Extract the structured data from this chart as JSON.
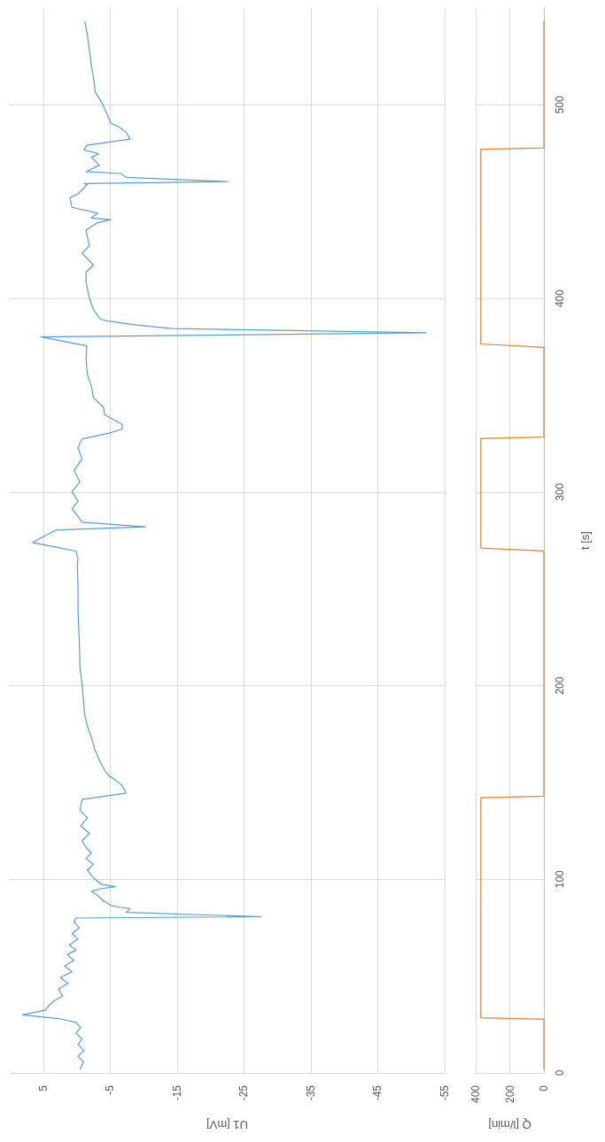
{
  "chart_data": [
    {
      "type": "line",
      "xlabel": "U1 [mV]",
      "xlim": [
        10,
        -55
      ],
      "xticks": [
        5,
        -5,
        -15,
        -25,
        -35,
        -45,
        -55
      ],
      "ylim": [
        0,
        550
      ],
      "yticks": [
        0,
        100,
        200,
        300,
        400,
        500
      ],
      "grid": true,
      "tick_labels": "x",
      "marker": "none",
      "series": [
        {
          "color": "#5b9bd5",
          "x": [
            -0.5,
            -1.0,
            -0.2,
            -1.1,
            -0.2,
            -0.8,
            0.1,
            -0.6,
            0.1,
            2.7,
            8.1,
            4.7,
            4.1,
            3.3,
            2.1,
            2.7,
            1.3,
            2.4,
            0.7,
            1.8,
            0.4,
            1.4,
            0.1,
            1.1,
            -0.2,
            0.7,
            -0.4,
            0.4,
            0.1,
            -27.6,
            -7.4,
            -8.0,
            -6.6,
            -5.1,
            -4.0,
            -3.1,
            -2.2,
            -3.7,
            -5.8,
            -3.7,
            -2.5,
            -1.6,
            -2.5,
            -1.4,
            -2.2,
            -1.4,
            -0.8,
            -1.9,
            -0.6,
            -1.6,
            -0.5,
            -0.8,
            -7.4,
            -6.8,
            -5.7,
            -4.8,
            -4.0,
            -3.4,
            -2.7,
            -2.2,
            -1.6,
            -1.2,
            -1.0,
            -0.8,
            -0.5,
            -0.4,
            -0.2,
            -0.2,
            -0.1,
            -0.2,
            0.1,
            3.0,
            6.6,
            4.7,
            3.0,
            -10.3,
            -0.8,
            -0.2,
            0.7,
            -0.2,
            0.7,
            -0.5,
            0.4,
            -0.8,
            -0.2,
            -0.8,
            -4.8,
            -6.8,
            -6.8,
            -4.2,
            -4.0,
            -2.5,
            -2.2,
            -1.6,
            -1.4,
            -1.5,
            5.3,
            -52.2,
            -14.3,
            -8.6,
            -4.5,
            -3.5,
            -2.5,
            -1.9,
            -1.4,
            -1.4,
            -2.5,
            -0.8,
            -1.9,
            -1.4,
            -3.1,
            -5.1,
            -2.2,
            -3.1,
            0.7,
            1.0,
            -0.2,
            -1.6,
            -1.1,
            -22.6,
            -7.4,
            -6.6,
            -1.5,
            -3.4,
            -2.2,
            -3.3,
            -1.1,
            -1.5,
            -8.0,
            -7.4,
            -6.3,
            -5.1,
            -4.5,
            -3.7,
            -2.8,
            -2.5,
            -2.2,
            -1.9,
            -1.6,
            -1.2
          ],
          "values": [
            1.7,
            5.7,
            8.6,
            11.6,
            14.6,
            17.6,
            20.5,
            23.5,
            26.1,
            28.1,
            30.0,
            32.4,
            35.0,
            37.4,
            39.7,
            43.3,
            46.3,
            49.3,
            52.2,
            55.2,
            58.2,
            61.1,
            63.5,
            66.1,
            69.1,
            72.0,
            75.0,
            78.0,
            80.0,
            80.7,
            82.9,
            84.9,
            85.5,
            86.5,
            88.9,
            91.8,
            93.8,
            95.2,
            96.2,
            97.4,
            100.8,
            104.7,
            107.7,
            110.7,
            113.6,
            116.6,
            119.8,
            123.7,
            127.7,
            131.7,
            135.6,
            141.2,
            144.5,
            148.5,
            151.5,
            153.5,
            157.4,
            161.4,
            167.3,
            173.3,
            179.2,
            185.2,
            193.1,
            201.0,
            208.9,
            222.8,
            238.6,
            250.5,
            262.4,
            265.6,
            269.5,
            271.5,
            273.9,
            277.5,
            280.4,
            282.0,
            284.4,
            287.4,
            291.3,
            295.3,
            300.2,
            305.2,
            311.1,
            317.1,
            323.0,
            327.4,
            330.4,
            332.5,
            334.9,
            339.9,
            343.8,
            348.8,
            354.7,
            360.7,
            368.6,
            375.5,
            380.1,
            382.3,
            384.4,
            386.4,
            388.4,
            389.4,
            394.3,
            400.3,
            408.2,
            413.4,
            417.3,
            423.3,
            427.2,
            435.2,
            439.1,
            440.7,
            441.5,
            444.1,
            447.0,
            452.0,
            454.0,
            458.9,
            459.3,
            460.3,
            462.5,
            464.5,
            465.5,
            468.8,
            472.8,
            474.8,
            476.7,
            479.1,
            482.3,
            485.7,
            488.6,
            490.6,
            495.6,
            501.5,
            506.5,
            514.4,
            520.3,
            528.2,
            536.2,
            543.1
          ]
        }
      ]
    },
    {
      "type": "line",
      "xlabel": "Q [l/min]",
      "ylabel": "t [s]",
      "xlim": [
        400,
        0
      ],
      "xticks": [
        400,
        200,
        0
      ],
      "ylim": [
        0,
        550
      ],
      "yticks": [
        0,
        100,
        200,
        300,
        400,
        500
      ],
      "grid": true,
      "marker": "none",
      "series": [
        {
          "color": "#ed7d31",
          "x": [
            0,
            0,
            370,
            370,
            0,
            0,
            370,
            370,
            0,
            0,
            370,
            370,
            0,
            0
          ],
          "values": [
            1.7,
            27.7,
            28.5,
            142.1,
            142.9,
            269.6,
            271.1,
            327.6,
            328.4,
            374.7,
            376.5,
            477.0,
            477.7,
            543.1
          ]
        }
      ]
    }
  ]
}
